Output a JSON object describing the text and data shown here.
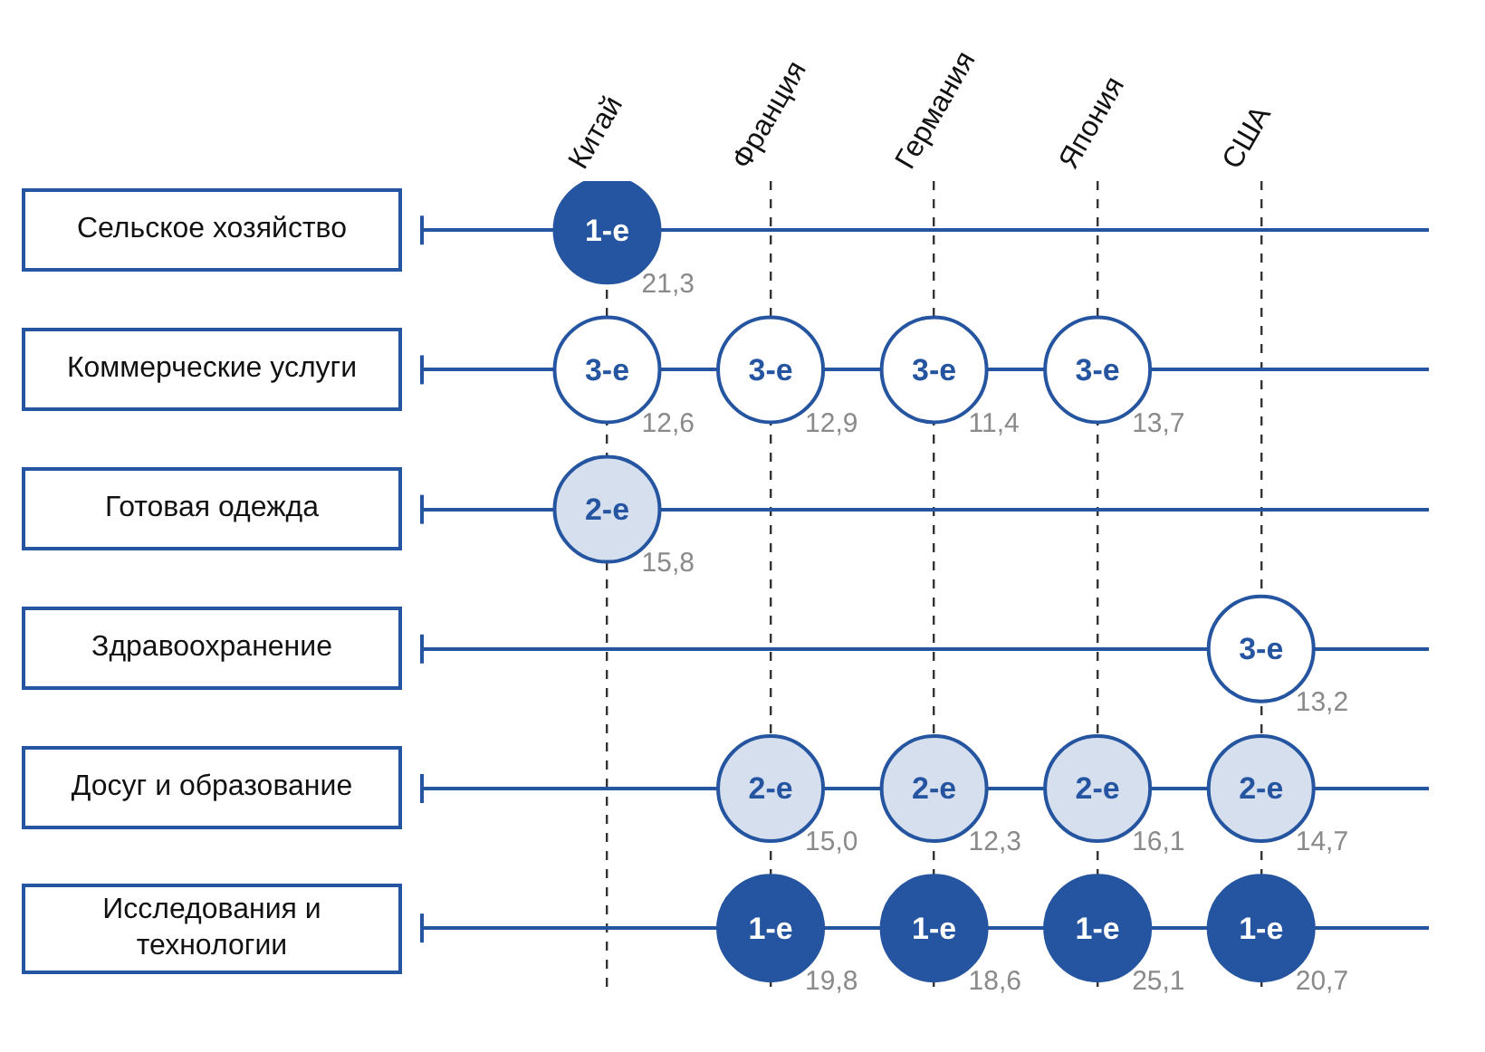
{
  "chart_data": {
    "type": "heatmap",
    "color": "#2555a0",
    "categories": [
      "Китай",
      "Франция",
      "Германия",
      "Япония",
      "США"
    ],
    "y_categories": [
      "Сельское хозяйство",
      "Коммерческие услуги",
      "Готовая одежда",
      "Здравоохранение",
      "Досуг и образование",
      "Исследования и технологии"
    ],
    "cells": [
      [
        1,
        null,
        null,
        null,
        null
      ],
      [
        3,
        3,
        3,
        3,
        null
      ],
      [
        2,
        null,
        null,
        null,
        null
      ],
      [
        null,
        null,
        null,
        null,
        3
      ],
      [
        null,
        2,
        2,
        2,
        2
      ],
      [
        null,
        1,
        1,
        1,
        1
      ]
    ],
    "cell_labels": [
      [
        "1-е",
        null,
        null,
        null,
        null
      ],
      [
        "3-е",
        "3-е",
        "3-е",
        "3-е",
        null
      ],
      [
        "2-е",
        null,
        null,
        null,
        null
      ],
      [
        null,
        null,
        null,
        null,
        "3-е"
      ],
      [
        null,
        "2-е",
        "2-е",
        "2-е",
        "2-е"
      ],
      [
        null,
        "1-е",
        "1-е",
        "1-е",
        "1-е"
      ]
    ],
    "colors": [
      "#2555a0",
      "#d6dfee",
      "#ffffff"
    ],
    "annotations": [
      "21,3",
      "12,6",
      "12,9",
      "11,4",
      "13,7",
      "15,8",
      "13,2",
      "15,0",
      "12,3",
      "16,1",
      "14,7",
      "19,8",
      "18,6",
      "25,1",
      "20,7"
    ],
    "grid": true
  }
}
